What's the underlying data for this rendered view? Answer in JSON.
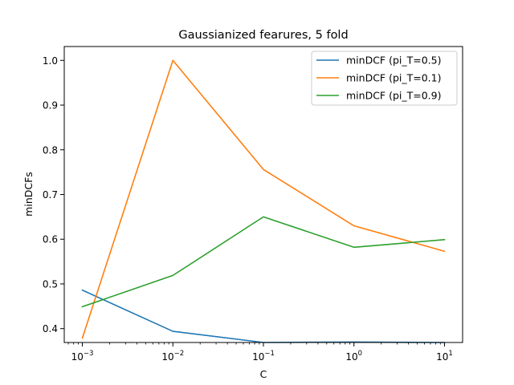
{
  "chart_data": {
    "type": "line",
    "title": "Gaussianized fearures, 5 fold",
    "xlabel": "C",
    "ylabel": "minDCFs",
    "x_scale": "log",
    "x": [
      0.001,
      0.01,
      0.1,
      1,
      10
    ],
    "x_tick_labels": [
      {
        "base": "10",
        "exp": "−3"
      },
      {
        "base": "10",
        "exp": "−2"
      },
      {
        "base": "10",
        "exp": "−1"
      },
      {
        "base": "10",
        "exp": "0"
      },
      {
        "base": "10",
        "exp": "1"
      }
    ],
    "y_ticks": [
      "0.4",
      "0.5",
      "0.6",
      "0.7",
      "0.8",
      "0.9",
      "1.0"
    ],
    "ylim": [
      0.369,
      1.031
    ],
    "xlim_log10": [
      -3.2,
      1.2
    ],
    "grid": false,
    "legend_position": "top-right",
    "series": [
      {
        "name": "minDCF (pi_T=0.5)",
        "color": "#1f77b4",
        "values": [
          0.486,
          0.394,
          0.369,
          0.37,
          0.369
        ]
      },
      {
        "name": "minDCF (pi_T=0.1)",
        "color": "#ff7f0e",
        "values": [
          0.379,
          1.0,
          0.756,
          0.63,
          0.573
        ]
      },
      {
        "name": "minDCF (pi_T=0.9)",
        "color": "#2ca02c",
        "values": [
          0.449,
          0.519,
          0.65,
          0.582,
          0.599
        ]
      }
    ]
  }
}
